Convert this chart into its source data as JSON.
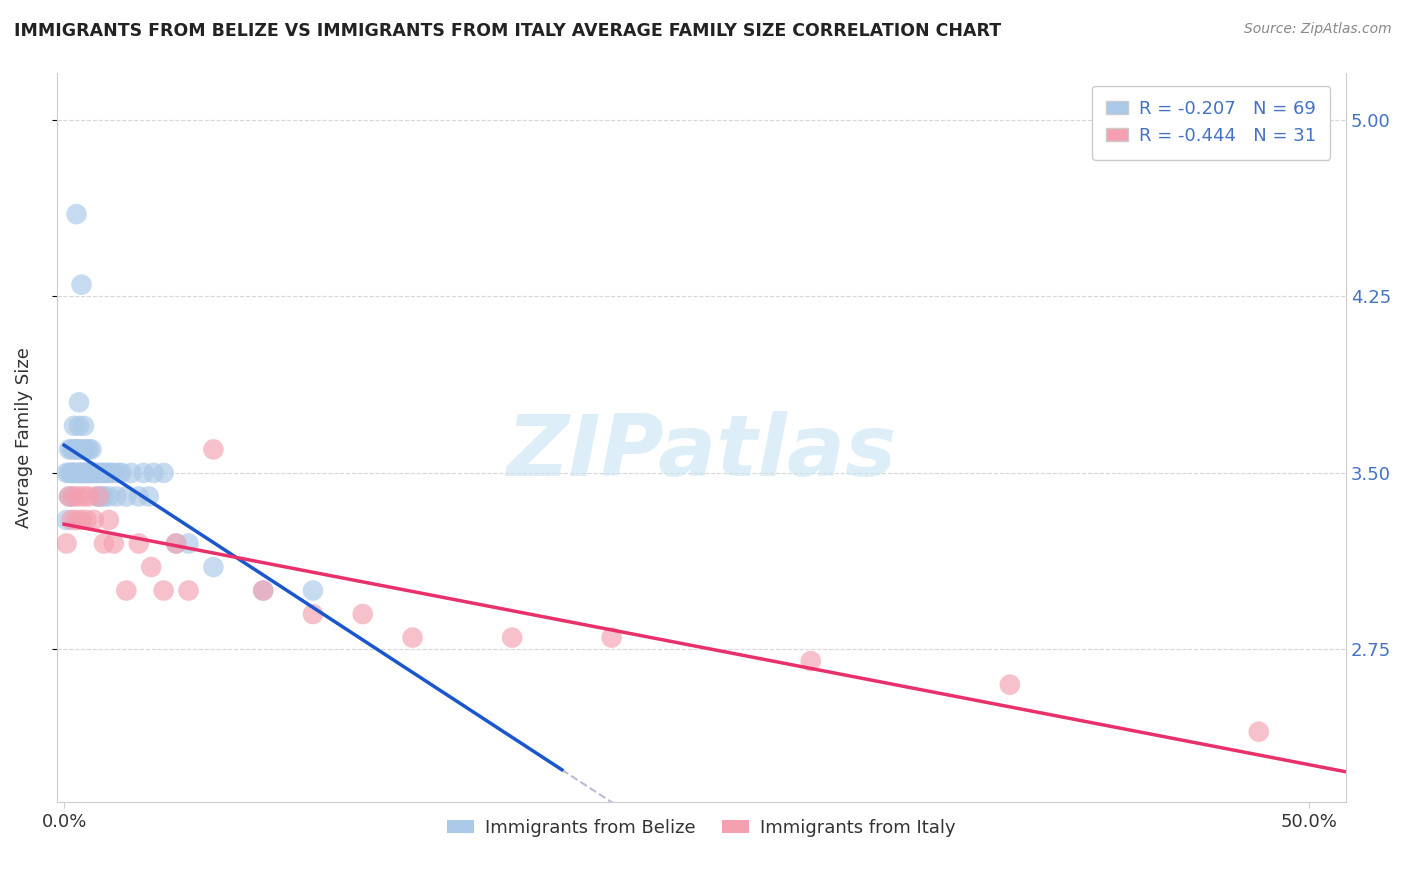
{
  "title": "IMMIGRANTS FROM BELIZE VS IMMIGRANTS FROM ITALY AVERAGE FAMILY SIZE CORRELATION CHART",
  "source": "Source: ZipAtlas.com",
  "ylabel": "Average Family Size",
  "right_yticks": [
    2.75,
    3.5,
    4.25,
    5.0
  ],
  "ylim": [
    2.1,
    5.2
  ],
  "xlim": [
    -0.003,
    0.515
  ],
  "legend_belize": "R = -0.207   N = 69",
  "legend_italy": "R = -0.444   N = 31",
  "belize_color": "#aac8e8",
  "italy_color": "#f4a0b0",
  "belize_line_color": "#1a56cc",
  "italy_line_color": "#e8306a",
  "grid_color": "#cccccc",
  "watermark_text": "ZIPatlas",
  "belize_x": [
    0.001,
    0.001,
    0.002,
    0.002,
    0.002,
    0.003,
    0.003,
    0.003,
    0.003,
    0.004,
    0.004,
    0.004,
    0.004,
    0.005,
    0.005,
    0.005,
    0.005,
    0.006,
    0.006,
    0.006,
    0.006,
    0.006,
    0.007,
    0.007,
    0.007,
    0.007,
    0.008,
    0.008,
    0.008,
    0.008,
    0.009,
    0.009,
    0.009,
    0.01,
    0.01,
    0.01,
    0.011,
    0.011,
    0.011,
    0.012,
    0.012,
    0.013,
    0.013,
    0.014,
    0.014,
    0.015,
    0.015,
    0.016,
    0.016,
    0.017,
    0.018,
    0.018,
    0.019,
    0.02,
    0.021,
    0.022,
    0.023,
    0.025,
    0.027,
    0.03,
    0.032,
    0.034,
    0.036,
    0.04,
    0.045,
    0.05,
    0.06,
    0.08,
    0.1
  ],
  "belize_y": [
    3.3,
    3.5,
    3.4,
    3.5,
    3.6,
    3.4,
    3.5,
    3.5,
    3.6,
    3.5,
    3.5,
    3.6,
    3.7,
    3.5,
    3.6,
    3.6,
    4.6,
    3.5,
    3.5,
    3.6,
    3.7,
    3.8,
    3.5,
    3.5,
    3.6,
    4.3,
    3.5,
    3.5,
    3.6,
    3.7,
    3.5,
    3.5,
    3.6,
    3.5,
    3.5,
    3.6,
    3.5,
    3.5,
    3.6,
    3.5,
    3.5,
    3.5,
    3.4,
    3.5,
    3.4,
    3.5,
    3.4,
    3.5,
    3.4,
    3.5,
    3.5,
    3.4,
    3.5,
    3.5,
    3.4,
    3.5,
    3.5,
    3.4,
    3.5,
    3.4,
    3.5,
    3.4,
    3.5,
    3.5,
    3.2,
    3.2,
    3.1,
    3.0,
    3.0
  ],
  "italy_x": [
    0.001,
    0.002,
    0.003,
    0.004,
    0.005,
    0.006,
    0.007,
    0.008,
    0.009,
    0.01,
    0.012,
    0.014,
    0.016,
    0.018,
    0.02,
    0.025,
    0.03,
    0.035,
    0.04,
    0.045,
    0.05,
    0.06,
    0.08,
    0.1,
    0.12,
    0.14,
    0.18,
    0.22,
    0.3,
    0.38,
    0.48
  ],
  "italy_y": [
    3.2,
    3.4,
    3.3,
    3.4,
    3.3,
    3.4,
    3.3,
    3.4,
    3.3,
    3.4,
    3.3,
    3.4,
    3.2,
    3.3,
    3.2,
    3.0,
    3.2,
    3.1,
    3.0,
    3.2,
    3.0,
    3.6,
    3.0,
    2.9,
    2.9,
    2.8,
    2.8,
    2.8,
    2.7,
    2.6,
    2.4
  ]
}
